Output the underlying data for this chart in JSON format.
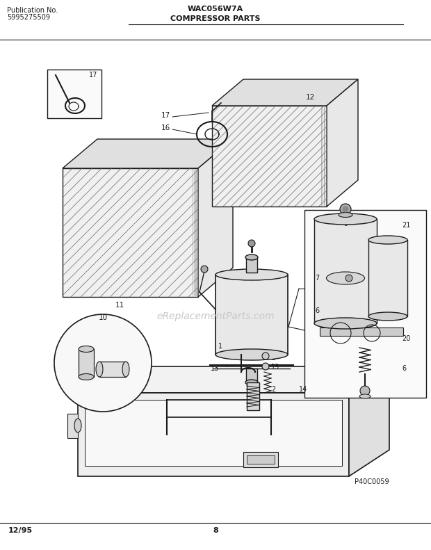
{
  "title_left1": "Publication No.",
  "title_left2": "5995275509",
  "title_center1": "WAC056W7A",
  "title_center2": "COMPRESSOR PARTS",
  "footer_left": "12/95",
  "footer_center": "8",
  "footer_right": "P40C0059",
  "watermark": "eReplacementParts.com",
  "bg_color": "#ffffff",
  "line_color": "#1a1a1a"
}
